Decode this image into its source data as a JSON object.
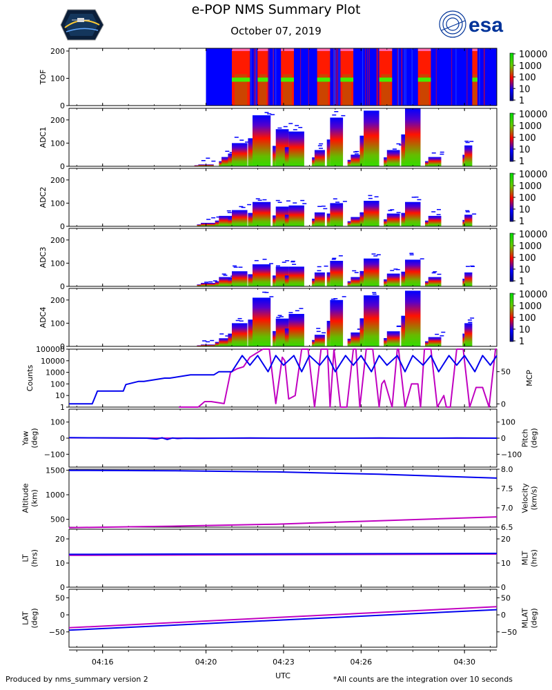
{
  "header": {
    "title": "e-POP NMS Summary Plot",
    "date": "October 07, 2019",
    "logo_right_text": "esa"
  },
  "footer": {
    "left": "Produced by nms_summary version 2",
    "right": "*All counts are the integration over 10 seconds"
  },
  "colors": {
    "magenta": "#c000c0",
    "blue": "#0000ee",
    "spec_blue": "#0000ff",
    "spec_red": "#ff0000",
    "spec_green": "#33dd00",
    "esa_blue": "#003399"
  },
  "chart_data": [
    {
      "type": "heatmap",
      "id": "tof",
      "ylabel": "TOF",
      "ylim": [
        0,
        210
      ],
      "yticks": [
        "0",
        "100",
        "200"
      ],
      "colorbar": {
        "scale": "log",
        "ticks": [
          "10000",
          "1000",
          "100",
          "10",
          "1"
        ]
      },
      "x_start": "04:20",
      "bands": [
        {
          "start": "04:20",
          "end": "04:21",
          "level": "low"
        },
        {
          "start": "04:21",
          "end": "04:21.7",
          "level": "high"
        },
        {
          "start": "04:22",
          "end": "04:22.4",
          "level": "high"
        },
        {
          "start": "04:22.9",
          "end": "04:23.4",
          "level": "high"
        },
        {
          "start": "04:24.3",
          "end": "04:24.8",
          "level": "high"
        },
        {
          "start": "04:25.2",
          "end": "04:25.7",
          "level": "high"
        },
        {
          "start": "04:26.7",
          "end": "04:27.2",
          "level": "high"
        },
        {
          "start": "04:28.2",
          "end": "04:28.7",
          "level": "high"
        },
        {
          "start": "04:30.3",
          "end": "04:30.5",
          "level": "high"
        }
      ]
    },
    {
      "type": "heatmap",
      "id": "adc1",
      "ylabel": "ADC1",
      "ylim": [
        0,
        250
      ],
      "yticks": [
        "0",
        "100",
        "200"
      ],
      "colorbar": {
        "scale": "log",
        "ticks": [
          "10000",
          "1000",
          "100",
          "10",
          "1"
        ]
      },
      "columns": [
        {
          "t": "04:19.7",
          "w": 0.6,
          "top": 8
        },
        {
          "t": "04:20.6",
          "w": 0.4,
          "top": 40
        },
        {
          "t": "04:21.0",
          "w": 0.6,
          "top": 100
        },
        {
          "t": "04:21.8",
          "w": 0.7,
          "top": 220
        },
        {
          "t": "04:22.7",
          "w": 0.5,
          "top": 160
        },
        {
          "t": "04:23.2",
          "w": 0.6,
          "top": 150
        },
        {
          "t": "04:24.2",
          "w": 0.4,
          "top": 70
        },
        {
          "t": "04:24.8",
          "w": 0.5,
          "top": 210
        },
        {
          "t": "04:25.6",
          "w": 0.5,
          "top": 50
        },
        {
          "t": "04:26.1",
          "w": 0.6,
          "top": 240
        },
        {
          "t": "04:27.0",
          "w": 0.5,
          "top": 70
        },
        {
          "t": "04:27.7",
          "w": 0.6,
          "top": 250
        },
        {
          "t": "04:28.6",
          "w": 0.5,
          "top": 40
        },
        {
          "t": "04:30.0",
          "w": 0.3,
          "top": 90
        }
      ]
    },
    {
      "type": "heatmap",
      "id": "adc2",
      "ylabel": "ADC2",
      "ylim": [
        0,
        250
      ],
      "yticks": [
        "0",
        "100",
        "200"
      ],
      "colorbar": {
        "scale": "log",
        "ticks": [
          "10000",
          "1000",
          "100",
          "10",
          "1"
        ]
      },
      "columns": [
        {
          "t": "04:19.8",
          "w": 0.6,
          "top": 15
        },
        {
          "t": "04:20.5",
          "w": 0.6,
          "top": 45
        },
        {
          "t": "04:21.0",
          "w": 0.6,
          "top": 70
        },
        {
          "t": "04:21.8",
          "w": 0.7,
          "top": 105
        },
        {
          "t": "04:22.7",
          "w": 0.5,
          "top": 85
        },
        {
          "t": "04:23.2",
          "w": 0.6,
          "top": 90
        },
        {
          "t": "04:24.2",
          "w": 0.4,
          "top": 60
        },
        {
          "t": "04:24.8",
          "w": 0.5,
          "top": 100
        },
        {
          "t": "04:25.6",
          "w": 0.5,
          "top": 40
        },
        {
          "t": "04:26.1",
          "w": 0.6,
          "top": 110
        },
        {
          "t": "04:27.0",
          "w": 0.5,
          "top": 55
        },
        {
          "t": "04:27.7",
          "w": 0.6,
          "top": 105
        },
        {
          "t": "04:28.6",
          "w": 0.5,
          "top": 45
        },
        {
          "t": "04:30.0",
          "w": 0.3,
          "top": 50
        }
      ]
    },
    {
      "type": "heatmap",
      "id": "adc3",
      "ylabel": "ADC3",
      "ylim": [
        0,
        250
      ],
      "yticks": [
        "0",
        "100",
        "200"
      ],
      "colorbar": {
        "scale": "log",
        "ticks": [
          "10000",
          "1000",
          "100",
          "10",
          "1"
        ]
      },
      "columns": [
        {
          "t": "04:19.8",
          "w": 0.6,
          "top": 15
        },
        {
          "t": "04:20.5",
          "w": 0.6,
          "top": 40
        },
        {
          "t": "04:21.0",
          "w": 0.6,
          "top": 65
        },
        {
          "t": "04:21.8",
          "w": 0.7,
          "top": 95
        },
        {
          "t": "04:22.7",
          "w": 0.5,
          "top": 85
        },
        {
          "t": "04:23.2",
          "w": 0.6,
          "top": 85
        },
        {
          "t": "04:24.2",
          "w": 0.4,
          "top": 60
        },
        {
          "t": "04:24.8",
          "w": 0.5,
          "top": 110
        },
        {
          "t": "04:25.6",
          "w": 0.5,
          "top": 40
        },
        {
          "t": "04:26.1",
          "w": 0.6,
          "top": 120
        },
        {
          "t": "04:27.0",
          "w": 0.5,
          "top": 55
        },
        {
          "t": "04:27.7",
          "w": 0.6,
          "top": 115
        },
        {
          "t": "04:28.6",
          "w": 0.5,
          "top": 40
        },
        {
          "t": "04:30.0",
          "w": 0.3,
          "top": 60
        }
      ]
    },
    {
      "type": "heatmap",
      "id": "adc4",
      "ylabel": "ADC4",
      "ylim": [
        0,
        250
      ],
      "yticks": [
        "0",
        "100",
        "200"
      ],
      "colorbar": {
        "scale": "log",
        "ticks": [
          "10000",
          "1000",
          "100",
          "10",
          "1"
        ]
      },
      "columns": [
        {
          "t": "04:19.8",
          "w": 0.6,
          "top": 8
        },
        {
          "t": "04:20.5",
          "w": 0.6,
          "top": 35
        },
        {
          "t": "04:21.0",
          "w": 0.6,
          "top": 100
        },
        {
          "t": "04:21.8",
          "w": 0.7,
          "top": 210
        },
        {
          "t": "04:22.7",
          "w": 0.5,
          "top": 120
        },
        {
          "t": "04:23.2",
          "w": 0.6,
          "top": 140
        },
        {
          "t": "04:24.2",
          "w": 0.4,
          "top": 50
        },
        {
          "t": "04:24.8",
          "w": 0.5,
          "top": 200
        },
        {
          "t": "04:25.6",
          "w": 0.5,
          "top": 60
        },
        {
          "t": "04:26.1",
          "w": 0.6,
          "top": 220
        },
        {
          "t": "04:27.0",
          "w": 0.5,
          "top": 65
        },
        {
          "t": "04:27.7",
          "w": 0.6,
          "top": 240
        },
        {
          "t": "04:28.6",
          "w": 0.5,
          "top": 40
        },
        {
          "t": "04:30.0",
          "w": 0.3,
          "top": 100
        }
      ]
    },
    {
      "type": "line",
      "id": "counts_mcp",
      "ylabel_left": "Counts",
      "ylabel_right": "MCP",
      "yscale_left": "log",
      "ylim_left": [
        1,
        100000
      ],
      "yticks_left": [
        "100000",
        "10000",
        "1000",
        "100",
        "10",
        "1"
      ],
      "ylim_right": [
        -5,
        85
      ],
      "yticks_right": [
        "0",
        "50"
      ],
      "series": [
        {
          "name": "Counts",
          "axis": "left",
          "color": "#c000c0",
          "x": [
            4.25,
            5.0,
            5.25,
            5.5,
            6.0,
            6.25,
            6.5,
            6.75,
            7.0,
            7.5,
            7.75,
            8.0,
            8.25,
            8.35,
            8.5,
            8.75,
            9.0,
            9.1,
            9.25,
            9.5,
            9.75,
            10.0,
            10.1,
            10.25,
            10.5,
            10.75,
            11.0,
            11.1,
            11.25,
            11.5,
            11.75,
            12.0,
            12.1,
            12.2,
            12.5,
            12.7,
            12.75,
            13.0,
            13.25,
            13.5,
            13.6,
            13.75,
            14.0,
            14.25,
            14.5,
            14.6,
            14.75,
            15.0,
            15.25,
            15.5,
            15.75,
            16.0,
            16.25,
            16.5,
            16.55
          ],
          "y": [
            1,
            1,
            3,
            3,
            2,
            1000,
            2000,
            3000,
            20000,
            100000,
            100000,
            2,
            20000,
            10000,
            5,
            10,
            100000,
            100000,
            100000,
            1,
            100000,
            100000,
            1,
            100000,
            1,
            1,
            100000,
            100000,
            1,
            100000,
            100000,
            1,
            100,
            200,
            1,
            100000,
            100000,
            1,
            100,
            100,
            1,
            100000,
            100000,
            1,
            10,
            1,
            1,
            100000,
            100000,
            1,
            50,
            50,
            1,
            100000,
            100000
          ]
        },
        {
          "name": "MCP",
          "axis": "right",
          "color": "#0000ee",
          "x": [
            0,
            0.9,
            1.0,
            1.1,
            1.5,
            2.1,
            2.2,
            2.7,
            2.9,
            3.7,
            3.9,
            4.7,
            4.9,
            5.6,
            5.8,
            6.0,
            6.3,
            6.7,
            7.0,
            7.3,
            7.7,
            8.0,
            8.3,
            8.7,
            9.0,
            9.3,
            9.7,
            10.0,
            10.3,
            10.7,
            11.0,
            11.3,
            11.7,
            12.0,
            12.3,
            12.7,
            13.0,
            13.3,
            13.7,
            14.0,
            14.3,
            14.7,
            15.0,
            15.3,
            15.7,
            16.0,
            16.3,
            16.55
          ],
          "y": [
            0,
            0,
            10,
            20,
            20,
            20,
            30,
            35,
            35,
            40,
            40,
            45,
            45,
            45,
            50,
            50,
            50,
            75,
            60,
            75,
            50,
            75,
            60,
            75,
            50,
            75,
            60,
            75,
            50,
            75,
            60,
            75,
            50,
            75,
            60,
            75,
            50,
            75,
            60,
            75,
            50,
            75,
            60,
            75,
            50,
            75,
            60,
            75
          ]
        }
      ]
    },
    {
      "type": "line",
      "id": "attitude",
      "ylabel_left": "Yaw\n(deg)",
      "ylabel_right": "Pitch\n(deg)",
      "ylim_left": [
        -180,
        180
      ],
      "yticks_left": [
        "100",
        "0",
        "−100"
      ],
      "ylim_right": [
        -180,
        180
      ],
      "yticks_right": [
        "100",
        "0",
        "−100"
      ],
      "series": [
        {
          "name": "Yaw",
          "axis": "left",
          "color": "#c000c0",
          "x": [
            0,
            2,
            4,
            6,
            8,
            10,
            12,
            14,
            16.55
          ],
          "y": [
            2,
            1,
            0,
            0,
            0,
            0,
            0,
            0,
            0
          ]
        },
        {
          "name": "Pitch",
          "axis": "right",
          "color": "#0000ee",
          "x": [
            0,
            1,
            2,
            3,
            3.4,
            3.6,
            3.8,
            4.0,
            4.2,
            4.5,
            5,
            6,
            7,
            8,
            9,
            10,
            11,
            12,
            13,
            14,
            15,
            16.55
          ],
          "y": [
            3,
            2,
            1,
            0,
            -5,
            2,
            -8,
            1,
            -2,
            0,
            -1,
            0,
            1,
            0,
            0,
            0,
            0,
            1,
            0,
            0,
            1,
            0
          ]
        }
      ]
    },
    {
      "type": "line",
      "id": "orbit",
      "ylabel_left": "Altitude\n(km)",
      "ylabel_right": "Velocity\n(km/s)",
      "ylim_left": [
        340,
        1520
      ],
      "yticks_left": [
        "1500",
        "1000",
        "500"
      ],
      "ylim_right": [
        6.5,
        8.0
      ],
      "yticks_right": [
        "8.0",
        "7.5",
        "7.0",
        "6.5"
      ],
      "series": [
        {
          "name": "Altitude",
          "axis": "left",
          "color": "#c000c0",
          "x": [
            0,
            4,
            8,
            12,
            16.55
          ],
          "y": [
            330,
            360,
            400,
            470,
            550
          ]
        },
        {
          "name": "Velocity",
          "axis": "right",
          "color": "#0000ee",
          "x": [
            0,
            4,
            8,
            12,
            16.55
          ],
          "y": [
            7.97,
            7.96,
            7.93,
            7.87,
            7.77
          ]
        }
      ]
    },
    {
      "type": "line",
      "id": "local_time",
      "ylabel_left": "LT\n(hrs)",
      "ylabel_right": "MLT\n(hrs)",
      "ylim_left": [
        0,
        24
      ],
      "yticks_left": [
        "20",
        "10",
        "0"
      ],
      "ylim_right": [
        0,
        24
      ],
      "yticks_right": [
        "20",
        "10",
        "0"
      ],
      "series": [
        {
          "name": "LT",
          "axis": "left",
          "color": "#c000c0",
          "x": [
            0,
            16.55
          ],
          "y": [
            13.2,
            13.7
          ]
        },
        {
          "name": "MLT",
          "axis": "right",
          "color": "#0000ee",
          "x": [
            0,
            16.55
          ],
          "y": [
            13.6,
            14.0
          ]
        }
      ]
    },
    {
      "type": "line",
      "id": "latitude",
      "ylabel_left": "LAT\n(deg)",
      "ylabel_right": "MLAT\n(deg)",
      "ylim_left": [
        -95,
        75
      ],
      "yticks_left": [
        "50",
        "0",
        "−50"
      ],
      "ylim_right": [
        -95,
        75
      ],
      "yticks_right": [
        "50",
        "0",
        "−50"
      ],
      "xlabel": "UTC",
      "xticks": [
        "04:16",
        "04:20",
        "04:23",
        "04:26",
        "04:30"
      ],
      "series": [
        {
          "name": "LAT",
          "axis": "left",
          "color": "#c000c0",
          "x": [
            0,
            16.55
          ],
          "y": [
            -38,
            24
          ]
        },
        {
          "name": "MLAT",
          "axis": "right",
          "color": "#0000ee",
          "x": [
            0,
            16.55
          ],
          "y": [
            -45,
            15
          ]
        }
      ]
    }
  ]
}
